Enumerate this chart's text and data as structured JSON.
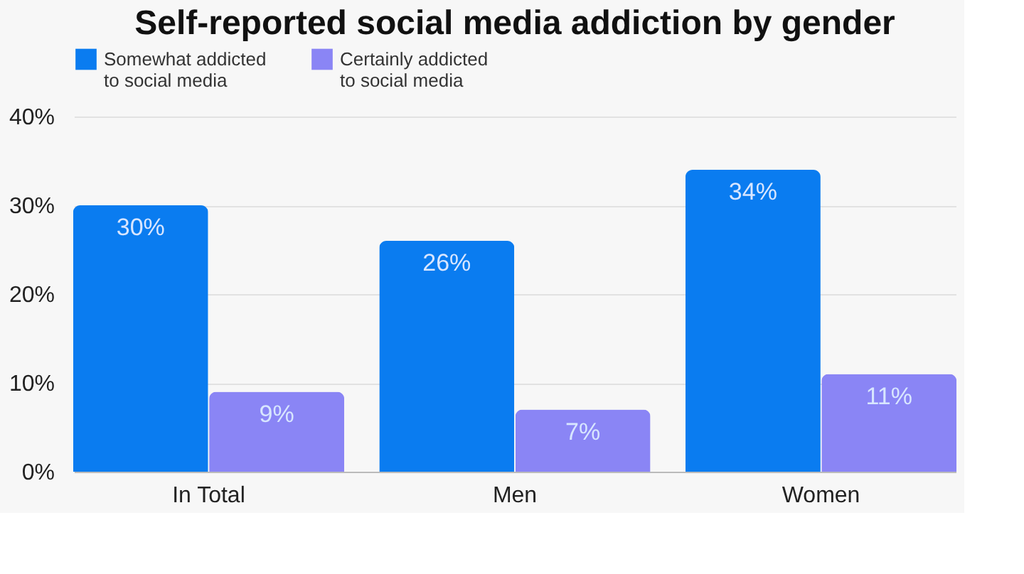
{
  "chart_data": {
    "type": "bar",
    "title": "Self-reported social media addiction by gender",
    "categories": [
      "In Total",
      "Men",
      "Women"
    ],
    "series": [
      {
        "name": "Somewhat addicted to social media",
        "color": "#0a7cf0",
        "values": [
          30,
          26,
          34
        ],
        "value_labels": [
          "30%",
          "26%",
          "34%"
        ]
      },
      {
        "name": "Certainly addicted to social media",
        "color": "#8a85f5",
        "values": [
          9,
          7,
          11
        ],
        "value_labels": [
          "9%",
          "7%",
          "11%"
        ]
      }
    ],
    "ylim": [
      0,
      40
    ],
    "yticks": [
      {
        "value": 0,
        "label": "0%"
      },
      {
        "value": 10,
        "label": "10%"
      },
      {
        "value": 20,
        "label": "20%"
      },
      {
        "value": 30,
        "label": "30%"
      },
      {
        "value": 40,
        "label": "40%"
      }
    ],
    "grid": "y",
    "legend": "top"
  }
}
